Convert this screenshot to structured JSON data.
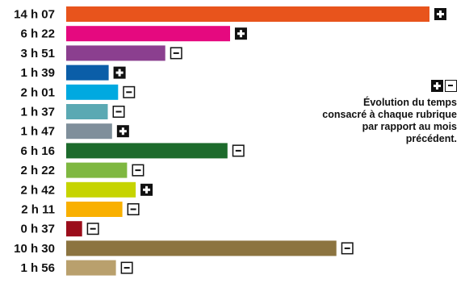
{
  "chart_data": {
    "type": "bar",
    "orientation": "horizontal",
    "unit": "minutes",
    "categories": [
      "14 h 07",
      "6 h 22",
      "3 h 51",
      "1 h 39",
      "2 h 01",
      "1 h 37",
      "1 h 47",
      "6 h 16",
      "2 h 22",
      "2 h 42",
      "2 h 11",
      "0 h 37",
      "10 h 30",
      "1 h 56"
    ],
    "values": [
      847,
      382,
      231,
      99,
      121,
      97,
      107,
      376,
      142,
      162,
      131,
      37,
      630,
      116
    ],
    "trend": [
      "plus",
      "plus",
      "minus",
      "plus",
      "minus",
      "minus",
      "plus",
      "minus",
      "minus",
      "plus",
      "minus",
      "minus",
      "minus",
      "minus"
    ],
    "colors": [
      "#e8541c",
      "#e5097f",
      "#8b3f8f",
      "#0b5ea8",
      "#00a9e0",
      "#5aa9b3",
      "#7f8f9b",
      "#1d6b2c",
      "#7fb841",
      "#c6d400",
      "#f9b000",
      "#9b0d1b",
      "#8c7440",
      "#b9a06d"
    ],
    "title": "",
    "xlabel": "",
    "ylabel": "",
    "legend": {
      "position": "right",
      "icons": [
        "plus-box-icon",
        "minus-box-icon"
      ],
      "text": "Évolution du temps consacré à chaque rubrique par rapport au mois précédent."
    }
  }
}
